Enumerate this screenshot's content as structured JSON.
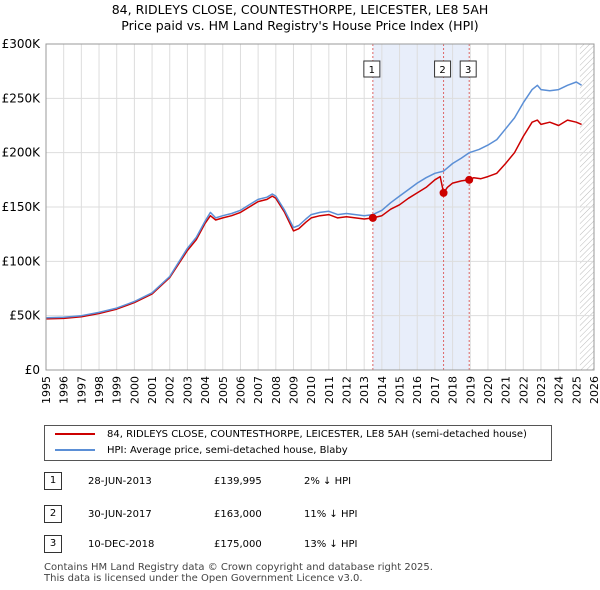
{
  "title_line1": "84, RIDLEYS CLOSE, COUNTESTHORPE, LEICESTER, LE8 5AH",
  "title_line2": "Price paid vs. HM Land Registry's House Price Index (HPI)",
  "legend": {
    "property": "84, RIDLEYS CLOSE, COUNTESTHORPE, LEICESTER, LE8 5AH (semi-detached house)",
    "hpi": "HPI: Average price, semi-detached house, Blaby"
  },
  "transactions": [
    {
      "num": "1",
      "date": "28-JUN-2013",
      "price": "£139,995",
      "hpi": "2% ↓ HPI"
    },
    {
      "num": "2",
      "date": "30-JUN-2017",
      "price": "£163,000",
      "hpi": "11% ↓ HPI"
    },
    {
      "num": "3",
      "date": "10-DEC-2018",
      "price": "£175,000",
      "hpi": "13% ↓ HPI"
    }
  ],
  "footer": {
    "line1": "Contains HM Land Registry data © Crown copyright and database right 2025.",
    "line2": "This data is licensed under the Open Government Licence v3.0."
  },
  "colors": {
    "property": "#cc0000",
    "hpi": "#5b8fd6",
    "band": "#e8eefa",
    "grid": "#dddddd"
  },
  "chart_data": {
    "type": "line",
    "xlim": [
      1995,
      2026
    ],
    "ylim": [
      0,
      300000
    ],
    "x_ticks": [
      "1995",
      "1996",
      "1997",
      "1998",
      "1999",
      "2000",
      "2001",
      "2002",
      "2003",
      "2004",
      "2005",
      "2006",
      "2007",
      "2008",
      "2009",
      "2010",
      "2011",
      "2012",
      "2013",
      "2014",
      "2015",
      "2016",
      "2017",
      "2018",
      "2019",
      "2020",
      "2021",
      "2022",
      "2023",
      "2024",
      "2025",
      "2026"
    ],
    "y_ticks": [
      {
        "value": 0,
        "label": "£0"
      },
      {
        "value": 50000,
        "label": "£50K"
      },
      {
        "value": 100000,
        "label": "£100K"
      },
      {
        "value": 150000,
        "label": "£150K"
      },
      {
        "value": 200000,
        "label": "£200K"
      },
      {
        "value": 250000,
        "label": "£250K"
      },
      {
        "value": 300000,
        "label": "£300K"
      }
    ],
    "grid": true,
    "series": [
      {
        "name": "84, RIDLEYS CLOSE, COUNTESTHORPE, LEICESTER, LE8 5AH (semi-detached house)",
        "color": "#cc0000",
        "points": [
          [
            1995.0,
            47000
          ],
          [
            1996.0,
            47500
          ],
          [
            1997.0,
            49000
          ],
          [
            1998.0,
            52000
          ],
          [
            1999.0,
            56000
          ],
          [
            2000.0,
            62000
          ],
          [
            2001.0,
            70000
          ],
          [
            2002.0,
            85000
          ],
          [
            2003.0,
            110000
          ],
          [
            2003.5,
            120000
          ],
          [
            2004.0,
            135000
          ],
          [
            2004.3,
            142000
          ],
          [
            2004.6,
            138000
          ],
          [
            2005.0,
            140000
          ],
          [
            2005.5,
            142000
          ],
          [
            2006.0,
            145000
          ],
          [
            2006.5,
            150000
          ],
          [
            2007.0,
            155000
          ],
          [
            2007.5,
            157000
          ],
          [
            2007.8,
            160000
          ],
          [
            2008.0,
            158000
          ],
          [
            2008.5,
            145000
          ],
          [
            2009.0,
            128000
          ],
          [
            2009.3,
            130000
          ],
          [
            2009.7,
            136000
          ],
          [
            2010.0,
            140000
          ],
          [
            2010.5,
            142000
          ],
          [
            2011.0,
            143000
          ],
          [
            2011.5,
            140000
          ],
          [
            2012.0,
            141000
          ],
          [
            2012.5,
            140000
          ],
          [
            2013.0,
            139000
          ],
          [
            2013.49,
            139995
          ],
          [
            2014.0,
            142000
          ],
          [
            2014.5,
            148000
          ],
          [
            2015.0,
            152000
          ],
          [
            2015.5,
            158000
          ],
          [
            2016.0,
            163000
          ],
          [
            2016.5,
            168000
          ],
          [
            2017.0,
            175000
          ],
          [
            2017.3,
            178000
          ],
          [
            2017.49,
            163000
          ],
          [
            2017.7,
            168000
          ],
          [
            2018.0,
            172000
          ],
          [
            2018.5,
            174000
          ],
          [
            2018.94,
            175000
          ],
          [
            2019.2,
            177000
          ],
          [
            2019.6,
            176000
          ],
          [
            2020.0,
            178000
          ],
          [
            2020.5,
            181000
          ],
          [
            2021.0,
            190000
          ],
          [
            2021.5,
            200000
          ],
          [
            2022.0,
            215000
          ],
          [
            2022.5,
            228000
          ],
          [
            2022.8,
            230000
          ],
          [
            2023.0,
            226000
          ],
          [
            2023.5,
            228000
          ],
          [
            2024.0,
            225000
          ],
          [
            2024.5,
            230000
          ],
          [
            2025.0,
            228000
          ],
          [
            2025.3,
            226000
          ]
        ]
      },
      {
        "name": "HPI: Average price, semi-detached house, Blaby",
        "color": "#5b8fd6",
        "points": [
          [
            1995.0,
            48000
          ],
          [
            1996.0,
            48500
          ],
          [
            1997.0,
            50000
          ],
          [
            1998.0,
            53000
          ],
          [
            1999.0,
            57000
          ],
          [
            2000.0,
            63000
          ],
          [
            2001.0,
            71000
          ],
          [
            2002.0,
            86000
          ],
          [
            2003.0,
            112000
          ],
          [
            2003.5,
            122000
          ],
          [
            2004.0,
            137000
          ],
          [
            2004.3,
            145000
          ],
          [
            2004.6,
            140000
          ],
          [
            2005.0,
            142000
          ],
          [
            2005.5,
            144000
          ],
          [
            2006.0,
            147000
          ],
          [
            2006.5,
            152000
          ],
          [
            2007.0,
            157000
          ],
          [
            2007.5,
            159000
          ],
          [
            2007.8,
            162000
          ],
          [
            2008.0,
            160000
          ],
          [
            2008.5,
            147000
          ],
          [
            2009.0,
            131000
          ],
          [
            2009.3,
            133000
          ],
          [
            2009.7,
            139000
          ],
          [
            2010.0,
            143000
          ],
          [
            2010.5,
            145000
          ],
          [
            2011.0,
            146000
          ],
          [
            2011.5,
            143000
          ],
          [
            2012.0,
            144000
          ],
          [
            2012.5,
            143000
          ],
          [
            2013.0,
            142000
          ],
          [
            2013.49,
            143000
          ],
          [
            2014.0,
            147000
          ],
          [
            2014.5,
            154000
          ],
          [
            2015.0,
            160000
          ],
          [
            2015.5,
            166000
          ],
          [
            2016.0,
            172000
          ],
          [
            2016.5,
            177000
          ],
          [
            2017.0,
            181000
          ],
          [
            2017.49,
            183000
          ],
          [
            2018.0,
            190000
          ],
          [
            2018.5,
            195000
          ],
          [
            2018.94,
            200000
          ],
          [
            2019.5,
            203000
          ],
          [
            2020.0,
            207000
          ],
          [
            2020.5,
            212000
          ],
          [
            2021.0,
            222000
          ],
          [
            2021.5,
            232000
          ],
          [
            2022.0,
            246000
          ],
          [
            2022.5,
            258000
          ],
          [
            2022.8,
            262000
          ],
          [
            2023.0,
            258000
          ],
          [
            2023.5,
            257000
          ],
          [
            2024.0,
            258000
          ],
          [
            2024.5,
            262000
          ],
          [
            2025.0,
            265000
          ],
          [
            2025.3,
            262000
          ]
        ]
      }
    ],
    "sale_markers": [
      {
        "label": "1",
        "x": 2013.49,
        "y": 139995
      },
      {
        "label": "2",
        "x": 2017.49,
        "y": 163000
      },
      {
        "label": "3",
        "x": 2018.94,
        "y": 175000
      }
    ],
    "shaded_band": [
      2013.49,
      2018.94
    ],
    "hatched_from": 2025.2
  }
}
